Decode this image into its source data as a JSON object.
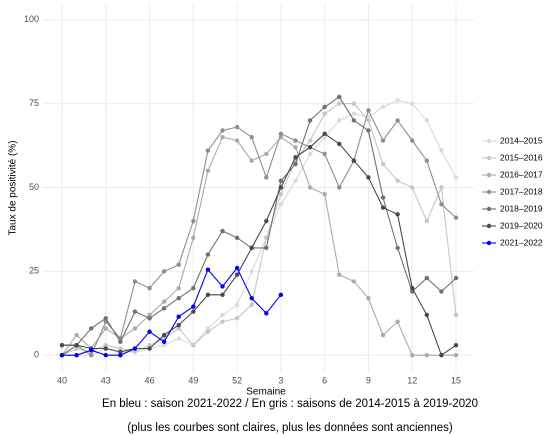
{
  "chart_data": {
    "type": "line",
    "xlabel": "Semaine",
    "ylabel": "Taux de positivité (%)",
    "notes": [
      "En bleu : saison 2021-2022 / En gris : saisons de 2014-2015 à 2019-2020",
      "(plus les courbes sont claires, plus les données sont anciennes)"
    ],
    "categories": [
      "40",
      null,
      null,
      "43",
      null,
      null,
      "46",
      null,
      null,
      "49",
      null,
      null,
      "52",
      null,
      null,
      "3",
      null,
      null,
      "6",
      null,
      null,
      "9",
      null,
      null,
      "12",
      null,
      null,
      "15"
    ],
    "ylim": [
      -5,
      105
    ],
    "yticks": [
      0,
      25,
      50,
      75,
      100
    ],
    "grid": true,
    "legend": "right",
    "series": [
      {
        "name": "2014–2015",
        "color": "#dadada",
        "values": [
          0,
          0,
          0,
          2,
          1,
          1,
          2,
          3,
          5,
          3,
          8,
          12,
          15,
          25,
          35,
          45,
          52,
          60,
          65,
          70,
          72,
          71,
          74,
          76,
          75,
          70,
          61,
          53
        ]
      },
      {
        "name": "2015–2016",
        "color": "#c6c6c6",
        "values": [
          0,
          2,
          1,
          3,
          2,
          1,
          3,
          5,
          8,
          3,
          7,
          10,
          11,
          15,
          35,
          48,
          58,
          64,
          72,
          75,
          75,
          70,
          57,
          52,
          50,
          40,
          50,
          12
        ]
      },
      {
        "name": "2016–2017",
        "color": "#aaaaaa",
        "values": [
          0,
          6,
          2,
          8,
          5,
          8,
          12,
          16,
          20,
          35,
          55,
          65,
          64,
          58,
          60,
          65,
          62,
          50,
          48,
          24,
          22,
          17,
          6,
          10,
          0,
          0,
          0,
          0
        ]
      },
      {
        "name": "2017–2018",
        "color": "#8e8e8e",
        "values": [
          3,
          3,
          0,
          10,
          5,
          22,
          20,
          25,
          27,
          40,
          61,
          67,
          68,
          65,
          53,
          66,
          64,
          62,
          60,
          50,
          58,
          73,
          64,
          70,
          64,
          58,
          45,
          41
        ]
      },
      {
        "name": "2018–2019",
        "color": "#707070",
        "values": [
          0,
          3,
          8,
          11,
          4,
          13,
          11,
          14,
          17,
          20,
          30,
          37,
          35,
          32,
          32,
          52,
          57,
          70,
          74,
          77,
          70,
          67,
          47,
          32,
          19,
          23,
          19,
          23
        ]
      },
      {
        "name": "2019–2020",
        "color": "#4a4a4a",
        "values": [
          3,
          3,
          2,
          2,
          1,
          2,
          2,
          6,
          9,
          13,
          18,
          18,
          24,
          32,
          40,
          50,
          59,
          62,
          66,
          63,
          58,
          53,
          44,
          42,
          20,
          12,
          0,
          3
        ]
      },
      {
        "name": "2021–2022",
        "color": "#0000ee",
        "values": [
          0,
          0,
          1.5,
          0,
          0,
          2,
          7,
          4,
          11.5,
          14.5,
          25.5,
          20.5,
          26,
          17,
          12.5,
          18,
          null,
          null,
          null,
          null,
          null,
          null,
          null,
          null,
          null,
          null,
          null,
          null
        ]
      }
    ]
  }
}
